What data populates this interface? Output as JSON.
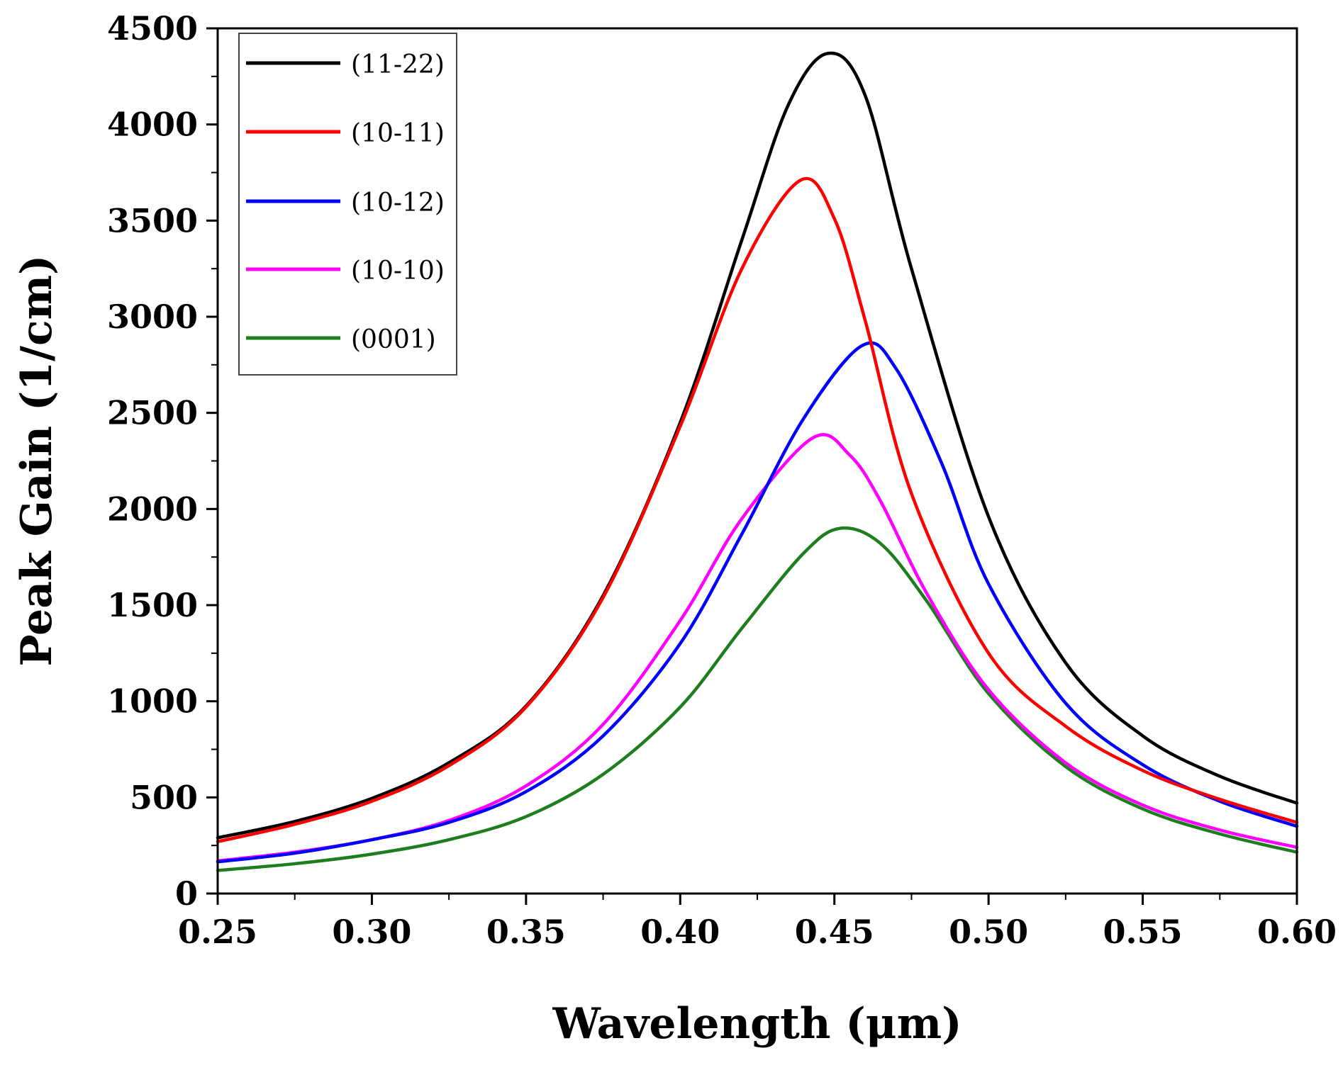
{
  "chart_data": {
    "type": "line",
    "title": "",
    "xlabel": "Wavelength (μm)",
    "ylabel": "Peak Gain (1/cm)",
    "xlim": [
      0.25,
      0.6
    ],
    "ylim": [
      0,
      4500
    ],
    "x_ticks": [
      0.25,
      0.3,
      0.35,
      0.4,
      0.45,
      0.5,
      0.55,
      0.6
    ],
    "x_tick_labels": [
      "0.25",
      "0.30",
      "0.35",
      "0.40",
      "0.45",
      "0.50",
      "0.55",
      "0.60"
    ],
    "y_ticks": [
      0,
      500,
      1000,
      1500,
      2000,
      2500,
      3000,
      3500,
      4000,
      4500
    ],
    "y_tick_labels": [
      "0",
      "500",
      "1000",
      "1500",
      "2000",
      "2500",
      "3000",
      "3500",
      "4000",
      "4500"
    ],
    "grid": false,
    "legend_position": "top-left",
    "series": [
      {
        "name": "(11-22)",
        "color": "#000000",
        "x": [
          0.25,
          0.275,
          0.3,
          0.325,
          0.35,
          0.375,
          0.4,
          0.42,
          0.435,
          0.448,
          0.46,
          0.475,
          0.5,
          0.525,
          0.55,
          0.575,
          0.6
        ],
        "y": [
          290,
          375,
          495,
          680,
          975,
          1550,
          2450,
          3400,
          4100,
          4370,
          4150,
          3250,
          1960,
          1200,
          820,
          610,
          470
        ]
      },
      {
        "name": "(10-11)",
        "color": "#ff0000",
        "x": [
          0.25,
          0.275,
          0.3,
          0.325,
          0.35,
          0.375,
          0.4,
          0.42,
          0.439,
          0.45,
          0.46,
          0.475,
          0.5,
          0.525,
          0.55,
          0.575,
          0.6
        ],
        "y": [
          270,
          360,
          480,
          665,
          970,
          1540,
          2430,
          3250,
          3710,
          3510,
          2980,
          2080,
          1250,
          870,
          640,
          490,
          370
        ]
      },
      {
        "name": "(10-12)",
        "color": "#0000ff",
        "x": [
          0.25,
          0.275,
          0.3,
          0.325,
          0.35,
          0.375,
          0.4,
          0.42,
          0.44,
          0.459,
          0.47,
          0.485,
          0.5,
          0.525,
          0.55,
          0.575,
          0.6
        ],
        "y": [
          165,
          210,
          280,
          370,
          530,
          820,
          1300,
          1870,
          2470,
          2850,
          2730,
          2230,
          1610,
          990,
          670,
          480,
          350
        ]
      },
      {
        "name": "(10-10)",
        "color": "#ff00ff",
        "x": [
          0.25,
          0.275,
          0.3,
          0.325,
          0.35,
          0.375,
          0.4,
          0.42,
          0.443,
          0.455,
          0.465,
          0.48,
          0.5,
          0.525,
          0.55,
          0.575,
          0.6
        ],
        "y": [
          170,
          215,
          280,
          380,
          560,
          880,
          1420,
          1950,
          2370,
          2280,
          2040,
          1560,
          1060,
          680,
          460,
          330,
          240
        ]
      },
      {
        "name": "(0001)",
        "color": "#1e7d1e",
        "x": [
          0.25,
          0.275,
          0.3,
          0.325,
          0.35,
          0.375,
          0.4,
          0.42,
          0.44,
          0.452,
          0.465,
          0.48,
          0.5,
          0.525,
          0.55,
          0.575,
          0.6
        ],
        "y": [
          120,
          155,
          205,
          280,
          400,
          620,
          970,
          1380,
          1770,
          1900,
          1820,
          1520,
          1040,
          660,
          440,
          310,
          215
        ]
      }
    ]
  }
}
